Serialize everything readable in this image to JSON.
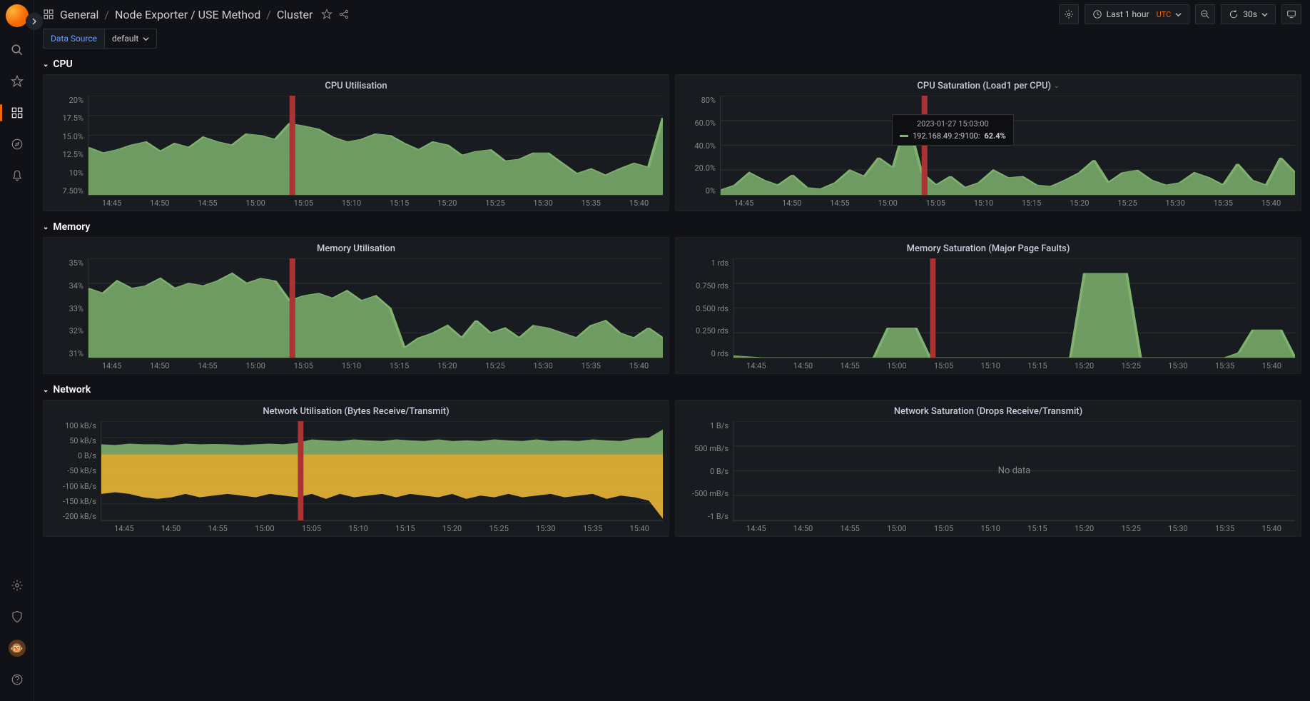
{
  "colors": {
    "bg": "#111217",
    "panel_bg": "#181b1f",
    "grid": "rgba(255,255,255,0.07)",
    "series_green": "#7eb26d",
    "series_yellow": "#eab839",
    "crosshair": "#a33",
    "accent": "#f46800",
    "link": "#6e9fff"
  },
  "breadcrumbs": {
    "root": "General",
    "mid": "Node Exporter / USE Method",
    "leaf": "Cluster"
  },
  "toolbar": {
    "time_label": "Last 1 hour",
    "tz": "UTC",
    "refresh_interval": "30s"
  },
  "variables": {
    "label": "Data Source",
    "value": "default"
  },
  "rows": {
    "cpu": "CPU",
    "memory": "Memory",
    "network": "Network"
  },
  "xticks": [
    "14:45",
    "14:50",
    "14:55",
    "15:00",
    "15:05",
    "15:10",
    "15:15",
    "15:20",
    "15:25",
    "15:30",
    "15:35",
    "15:40"
  ],
  "tooltip": {
    "time": "2023-01-27 15:03:00",
    "series": "192.168.49.2:9100:",
    "value": "62.4%"
  },
  "panels": {
    "cpu_util": {
      "title": "CPU Utilisation",
      "type": "area",
      "ylim": [
        7.5,
        20
      ],
      "yticks": [
        "20%",
        "17.5%",
        "15.0%",
        "12.5%",
        "10%",
        "7.50%"
      ],
      "data": [
        13.5,
        12.8,
        13.2,
        13.8,
        14.2,
        13.0,
        14.0,
        13.5,
        14.8,
        14.2,
        13.8,
        15.2,
        15.0,
        14.5,
        16.5,
        16.2,
        15.8,
        14.8,
        14.2,
        14.5,
        15.2,
        15.0,
        14.0,
        13.2,
        14.2,
        13.8,
        12.5,
        13.0,
        13.2,
        11.8,
        12.0,
        12.8,
        12.8,
        11.5,
        10.2,
        10.8,
        10.0,
        10.8,
        11.5,
        11.0,
        17.2
      ],
      "crosshair_x": 0.355
    },
    "cpu_sat": {
      "title": "CPU Saturation (Load1 per CPU)",
      "type": "area",
      "has_menu": true,
      "ylim": [
        0,
        80
      ],
      "yticks": [
        "80%",
        "60.0%",
        "40.0%",
        "20.0%",
        "0%"
      ],
      "data": [
        4,
        8,
        18,
        12,
        8,
        16,
        6,
        5,
        10,
        20,
        15,
        30,
        22,
        62,
        18,
        8,
        15,
        6,
        10,
        20,
        14,
        15,
        8,
        7,
        12,
        18,
        28,
        10,
        18,
        20,
        12,
        8,
        10,
        18,
        14,
        8,
        25,
        12,
        8,
        30,
        18
      ],
      "crosshair_x": 0.355
    },
    "mem_util": {
      "title": "Memory Utilisation",
      "type": "area",
      "ylim": [
        31,
        35
      ],
      "yticks": [
        "35%",
        "34%",
        "33%",
        "32%",
        "31%"
      ],
      "data": [
        33.8,
        33.6,
        34.1,
        33.8,
        33.9,
        34.2,
        33.8,
        34.0,
        33.9,
        34.1,
        34.4,
        34.0,
        34.2,
        34.1,
        33.3,
        33.5,
        33.6,
        33.4,
        33.7,
        33.3,
        33.5,
        33.0,
        31.4,
        31.8,
        32.0,
        32.3,
        31.8,
        32.5,
        32.0,
        32.2,
        31.8,
        32.3,
        32.2,
        32.0,
        31.8,
        32.3,
        32.5,
        32.0,
        31.8,
        32.2,
        31.8
      ],
      "crosshair_x": 0.355
    },
    "mem_sat": {
      "title": "Memory Saturation (Major Page Faults)",
      "type": "area",
      "ylim": [
        0,
        1
      ],
      "yticks": [
        "1 rds",
        "0.750 rds",
        "0.500 rds",
        "0.250 rds",
        "0 rds"
      ],
      "data": [
        0.02,
        0.01,
        0,
        0,
        0,
        0,
        0,
        0,
        0,
        0,
        0,
        0.3,
        0.3,
        0.3,
        0,
        0,
        0,
        0,
        0,
        0,
        0,
        0,
        0,
        0,
        0,
        0.85,
        0.85,
        0.85,
        0.85,
        0,
        0,
        0,
        0,
        0,
        0,
        0,
        0.05,
        0.28,
        0.28,
        0.28,
        0
      ],
      "crosshair_x": 0.355
    },
    "net_util": {
      "title": "Network Utilisation (Bytes Receive/Transmit)",
      "type": "area_dual",
      "ylim": [
        -200,
        100
      ],
      "yticks": [
        "100 kB/s",
        "50 kB/s",
        "0 B/s",
        "-50 kB/s",
        "-100 kB/s",
        "-150 kB/s",
        "-200 kB/s"
      ],
      "series_a": [
        30,
        28,
        32,
        30,
        30,
        28,
        32,
        30,
        31,
        30,
        28,
        30,
        32,
        30,
        35,
        45,
        42,
        40,
        45,
        42,
        40,
        45,
        42,
        40,
        45,
        40,
        42,
        40,
        45,
        42,
        40,
        45,
        40,
        42,
        40,
        45,
        42,
        40,
        48,
        50,
        75
      ],
      "series_b": [
        -120,
        -115,
        -120,
        -130,
        -135,
        -130,
        -120,
        -130,
        -125,
        -120,
        -125,
        -130,
        -120,
        -125,
        -130,
        -120,
        -135,
        -120,
        -130,
        -125,
        -120,
        -130,
        -120,
        -125,
        -130,
        -120,
        -135,
        -125,
        -130,
        -120,
        -130,
        -125,
        -120,
        -130,
        -125,
        -120,
        -135,
        -125,
        -130,
        -140,
        -195
      ],
      "crosshair_x": 0.355
    },
    "net_sat": {
      "title": "Network Saturation (Drops Receive/Transmit)",
      "type": "nodata",
      "ylim": [
        -1,
        1
      ],
      "yticks": [
        "1 B/s",
        "500 mB/s",
        "0 B/s",
        "-500 mB/s",
        "-1 B/s"
      ],
      "nodata_label": "No data"
    }
  }
}
